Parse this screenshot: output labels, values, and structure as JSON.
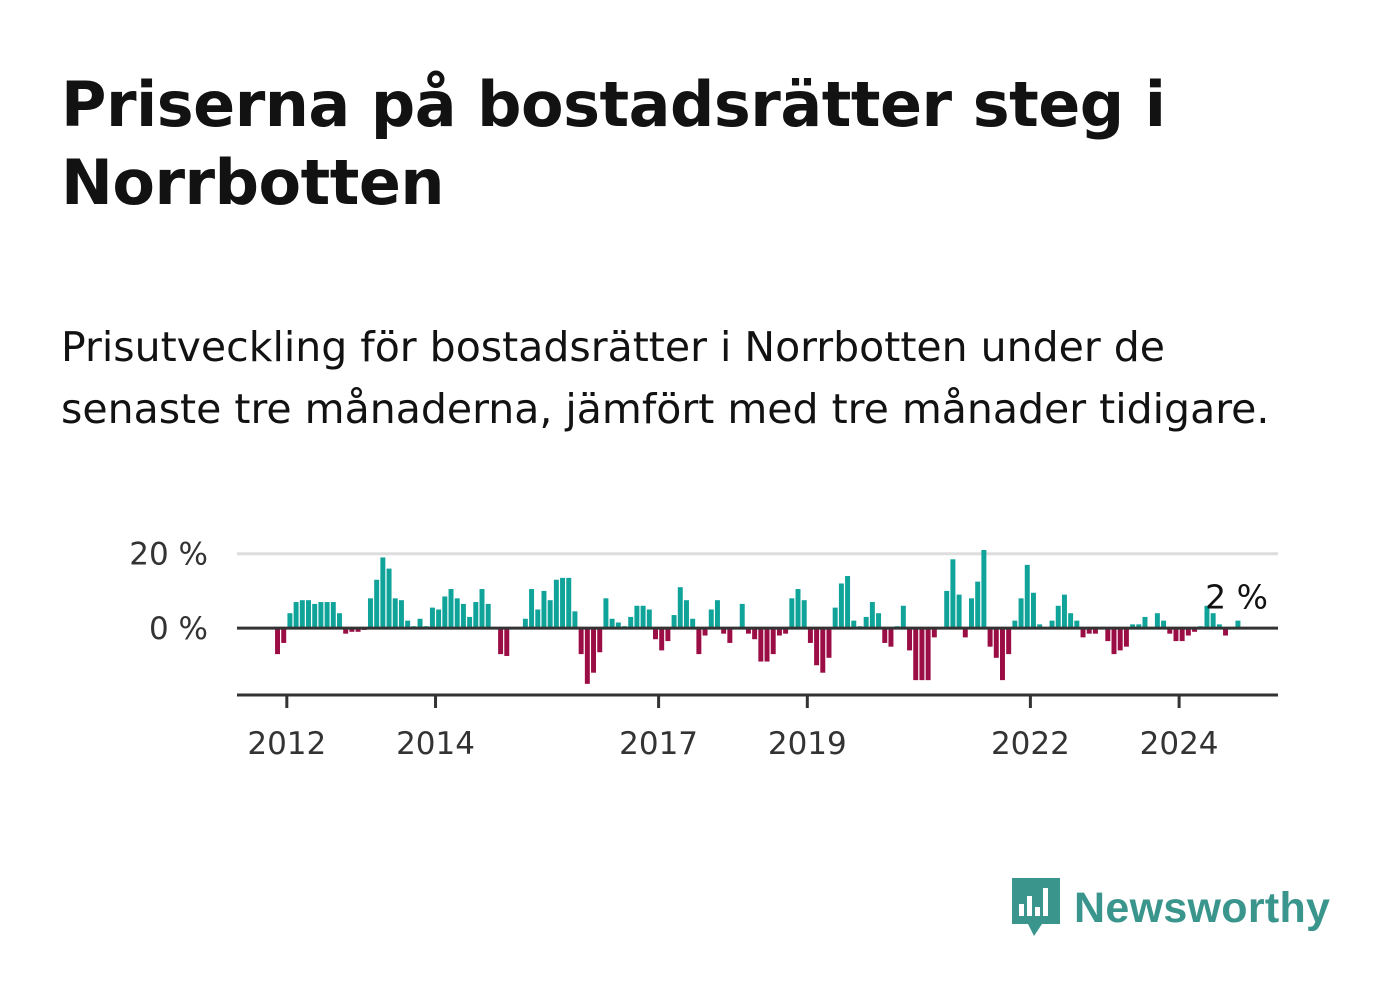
{
  "title": "Priserna på bostadsrätter steg i Norrbotten",
  "subtitle": "Prisutveckling för bostadsrätter i Norrbotten under de senaste tre månaderna, jämfört med tre månader tidigare.",
  "brand": {
    "name": "Newsworthy"
  },
  "colors": {
    "positive": "#0fa39a",
    "negative": "#9b0d45",
    "grid": "#dddddd",
    "axis": "#333333"
  },
  "chart_data": {
    "type": "bar",
    "title": "Priserna på bostadsrätter steg i Norrbotten",
    "xlabel": "",
    "ylabel": "",
    "x_start": 2011.875,
    "x_step": 0.08333,
    "xlim": [
      2011.33,
      2025.33
    ],
    "ylim": [
      -18,
      21
    ],
    "y_ticks": [
      {
        "value": 20,
        "label": "20 %"
      },
      {
        "value": 0,
        "label": "0 %"
      }
    ],
    "x_ticks": [
      {
        "value": 2012,
        "label": "2012"
      },
      {
        "value": 2014,
        "label": "2014"
      },
      {
        "value": 2017,
        "label": "2017"
      },
      {
        "value": 2019,
        "label": "2019"
      },
      {
        "value": 2022,
        "label": "2022"
      },
      {
        "value": 2024,
        "label": "2024"
      }
    ],
    "annotation": {
      "text": "2 %",
      "value": 2
    },
    "values": [
      -7,
      -4,
      4,
      7,
      7.5,
      7.5,
      6.5,
      7,
      7,
      7,
      4,
      -1.5,
      -1,
      -1,
      -0.5,
      8,
      13,
      19,
      16,
      8,
      7.5,
      2,
      0.5,
      2.5,
      0.5,
      5.5,
      5,
      8.5,
      10.5,
      8,
      6.5,
      3,
      7,
      10.5,
      6.5,
      0,
      -7,
      -7.5,
      0,
      0,
      2.5,
      10.5,
      5,
      10,
      7.5,
      13,
      13.5,
      13.5,
      4.5,
      -7,
      -15,
      -12,
      -6.5,
      8,
      2.5,
      1.5,
      0.5,
      3,
      6,
      6,
      5,
      -3,
      -6,
      -3.5,
      3.5,
      11,
      7.5,
      2.5,
      -7,
      -2,
      5,
      7.5,
      -1.5,
      -4,
      0,
      6.5,
      -1.5,
      -3,
      -9,
      -9,
      -7,
      -2,
      -1.5,
      8,
      10.5,
      7.5,
      -4,
      -10,
      -12,
      -8,
      5.5,
      12,
      14,
      2,
      0.5,
      3,
      7,
      4,
      -4,
      -5,
      0.5,
      6,
      -6,
      -14,
      -14,
      -14,
      -2.5,
      0,
      10,
      18.5,
      9,
      -2.5,
      8,
      12.5,
      21,
      -5,
      -8,
      -14,
      -7,
      2,
      8,
      17,
      9.5,
      1,
      0,
      2,
      6,
      9,
      4,
      2,
      -2.5,
      -1.5,
      -1.5,
      0,
      -3.5,
      -7,
      -6,
      -5,
      1,
      1,
      3,
      0,
      4,
      2,
      -1.5,
      -3.5,
      -3.5,
      -2,
      -1,
      0.5,
      6,
      4,
      1,
      -2,
      0,
      2
    ]
  }
}
